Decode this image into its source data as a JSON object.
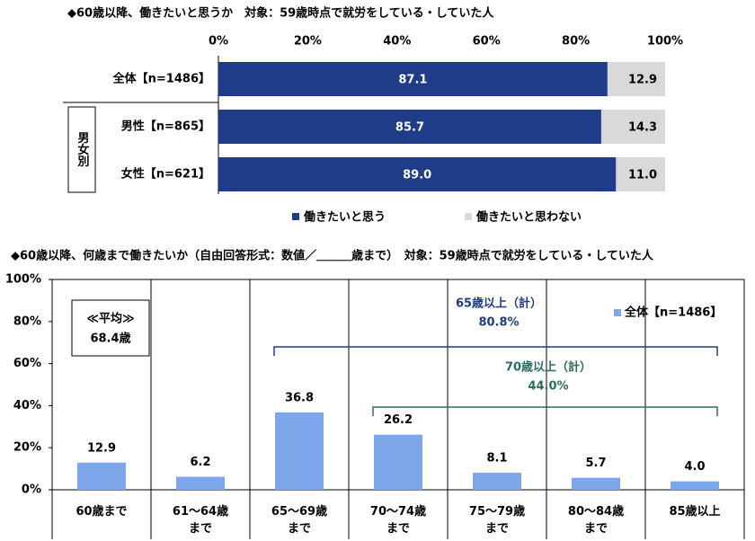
{
  "chart_data": [
    {
      "type": "bar",
      "orientation": "horizontal",
      "stacked": true,
      "title": "◆60歳以降、働きたいと思うか　対象：59歳時点で就労をしている・していた人",
      "categories": [
        "全体【n=1486】",
        "男性【n=865】",
        "女性【n=621】"
      ],
      "group_label": "男女別",
      "series": [
        {
          "name": "働きたいと思う",
          "color": "#1f3c88",
          "values": [
            87.1,
            85.7,
            89.0
          ],
          "value_labels": [
            "87.1",
            "85.7",
            "89.0"
          ]
        },
        {
          "name": "働きたいと思わない",
          "color": "#d9d9d9",
          "values": [
            12.9,
            14.3,
            11.0
          ],
          "value_labels": [
            "12.9",
            "14.3",
            "11.0"
          ]
        }
      ],
      "xlim": [
        0,
        100
      ],
      "xticks": [
        {
          "value": 0,
          "label": "0%"
        },
        {
          "value": 20,
          "label": "20%"
        },
        {
          "value": 40,
          "label": "40%"
        },
        {
          "value": 60,
          "label": "60%"
        },
        {
          "value": 80,
          "label": "80%"
        },
        {
          "value": 100,
          "label": "100%"
        }
      ],
      "legend": "bottom"
    },
    {
      "type": "bar",
      "title": "◆60歳以降、何歳まで働きたいか（自由回答形式：数値／＿＿＿歳まで）　対象：59歳時点で就労をしている・していた人",
      "categories": [
        "60歳まで",
        "61～64歳\nまで",
        "65～69歳\nまで",
        "70～74歳\nまで",
        "75～79歳\nまで",
        "80～84歳\nまで",
        "85歳以上"
      ],
      "series": [
        {
          "name": "全体【n=1486】",
          "color": "#7ea6ea",
          "values": [
            12.9,
            6.2,
            36.8,
            26.2,
            8.1,
            5.7,
            4.0
          ],
          "value_labels": [
            "12.9",
            "6.2",
            "36.8",
            "26.2",
            "8.1",
            "5.7",
            "4.0"
          ]
        }
      ],
      "ylim": [
        0,
        100
      ],
      "yticks": [
        {
          "value": 0,
          "label": "0%"
        },
        {
          "value": 20,
          "label": "20%"
        },
        {
          "value": 40,
          "label": "40%"
        },
        {
          "value": 60,
          "label": "60%"
        },
        {
          "value": 80,
          "label": "80%"
        },
        {
          "value": 100,
          "label": "100%"
        }
      ],
      "legend": "top-right",
      "average_box": {
        "label": "≪平均≫",
        "value": "68.4歳"
      },
      "brackets": [
        {
          "label": "65歳以上（計）",
          "total": "80.8%",
          "color": "#1f3c88"
        },
        {
          "label": "70歳以上（計）",
          "total": "44.0%",
          "color": "#2e6b5e"
        }
      ]
    }
  ]
}
